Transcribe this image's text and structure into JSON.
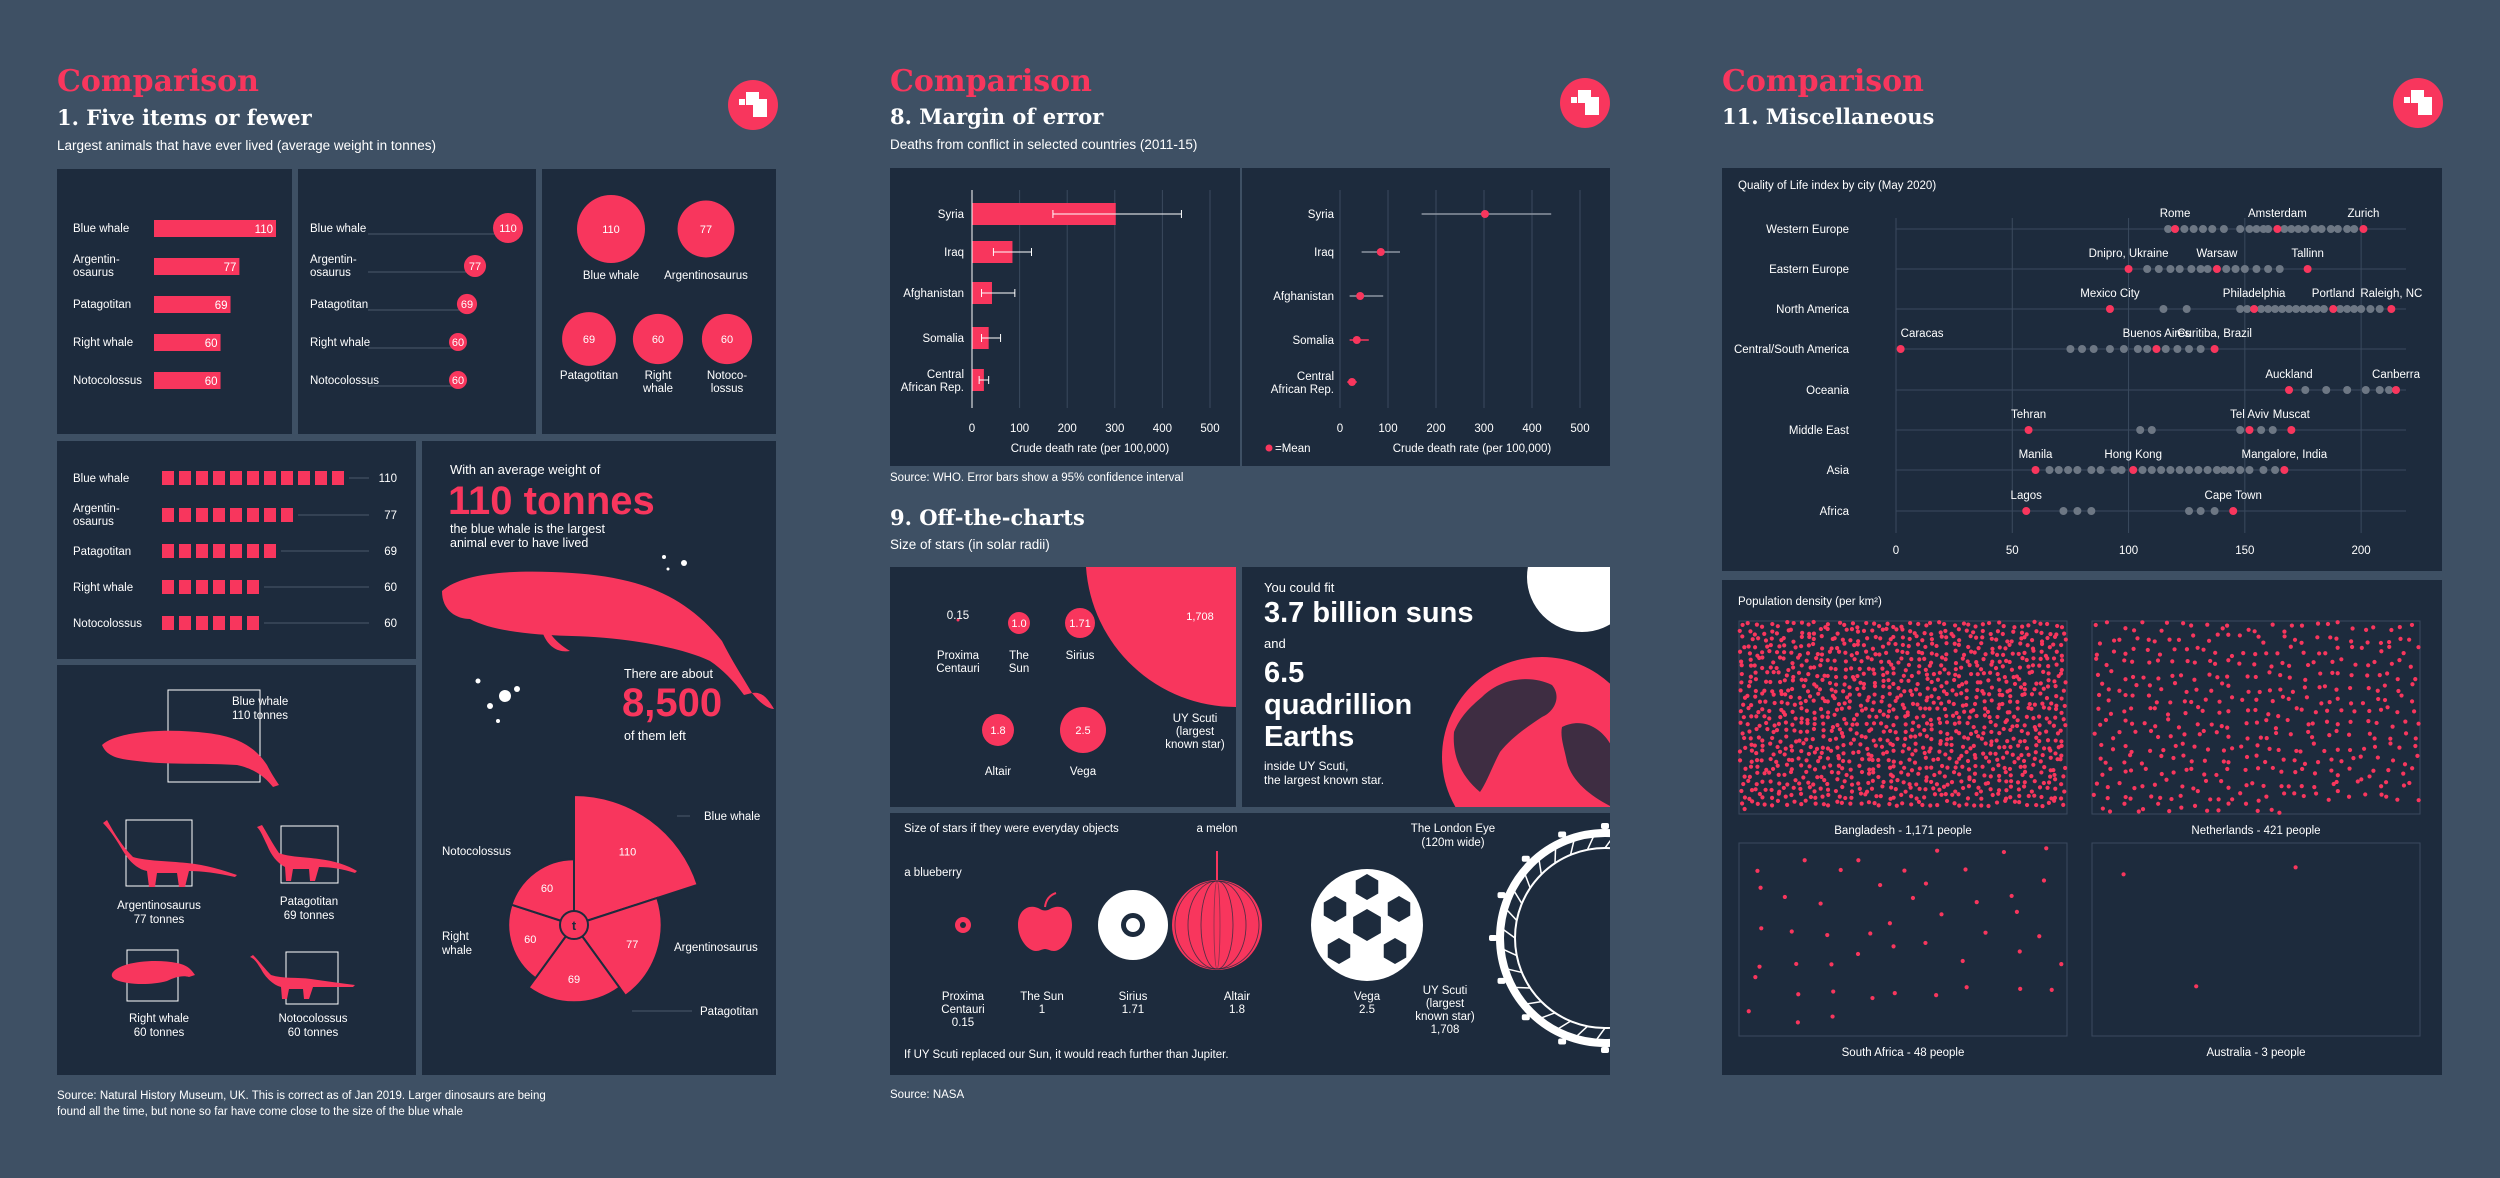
{
  "s1": {
    "heading": "Comparison",
    "title": "1. Five items or fewer",
    "subtitle": "Largest animals that have ever lived (average weight in tonnes)",
    "source": "Source: Natural History Museum, UK. This is correct as of Jan 2019. Larger dinosaurs are being found all the time, but none so far have come close to the size of the blue whale",
    "names": [
      "Blue whale",
      "Argentin-\nosaurus",
      "Patagotitan",
      "Right whale",
      "Notocolossus"
    ],
    "round_labels": [
      "Blue whale",
      "Argentinosaurus",
      "Patagotitan",
      "Right\nwhale",
      "Notoco-\nlossus"
    ],
    "values": [
      110,
      77,
      69,
      60,
      60
    ],
    "callout": {
      "lead": "With an average weight of",
      "big": "110 tonnes",
      "desc": "the blue whale is the largest animal ever to have lived",
      "about": "There are about",
      "count": "8,500",
      "left": "of them left"
    },
    "silhouettes": [
      {
        "name": "Blue whale",
        "weight": "110 tonnes"
      },
      {
        "name": "Argentinosaurus",
        "weight": "77 tonnes"
      },
      {
        "name": "Patagotitan",
        "weight": "69 tonnes"
      },
      {
        "name": "Right whale",
        "weight": "60 tonnes"
      },
      {
        "name": "Notocolossus",
        "weight": "60 tonnes"
      }
    ],
    "radial": {
      "center": "t",
      "labels": [
        "Blue whale",
        "Argentinosaurus",
        "Patagotitan",
        "Right\nwhale",
        "Notocolossus"
      ]
    }
  },
  "s8": {
    "heading": "Comparison",
    "title": "8. Margin of error",
    "subtitle": "Deaths from conflict in selected countries (2011-15)",
    "source": "Source: WHO. Error bars show a 95% confidence interval",
    "mean_legend": "=Mean"
  },
  "s9": {
    "title": "9. Off-the-charts",
    "subtitle": "Size of stars (in solar radii)",
    "stars": [
      {
        "name": "Proxima\nCentauri",
        "value": "0.15"
      },
      {
        "name": "The\nSun",
        "value": "1.0"
      },
      {
        "name": "Sirius",
        "value": "1.71"
      },
      {
        "name": "Altair",
        "value": "1.8"
      },
      {
        "name": "Vega",
        "value": "2.5"
      },
      {
        "name": "UY Scuti\n(largest\nknown star)",
        "value": "1,708"
      }
    ],
    "fit": {
      "lead": "You could fit",
      "suns": "3.7 billion suns",
      "and": "and",
      "earths": "6.5 quadrillion Earths",
      "inside": "inside UY Scuti,\nthe largest known star."
    },
    "everyday": {
      "title": "Size of stars if they were everyday objects",
      "melon": "a melon",
      "blueberry": "a blueberry",
      "eye": "The London Eye\n(120m wide)",
      "items": [
        {
          "name": "Proxima\nCentauri\n0.15"
        },
        {
          "name": "The Sun\n1"
        },
        {
          "name": "Sirius\n1.71"
        },
        {
          "name": "Altair\n1.8"
        },
        {
          "name": "Vega\n2.5"
        },
        {
          "name": "UY Scuti\n(largest\nknown star)\n1,708"
        }
      ],
      "footnote": "If UY Scuti replaced our Sun, it would reach further than Jupiter."
    },
    "source": "Source: NASA"
  },
  "s11": {
    "heading": "Comparison",
    "title": "11. Miscellaneous",
    "qol_title": "Quality of Life index by city (May 2020)",
    "density_title": "Population density (per km²)",
    "density": [
      {
        "label": "Bangladesh - 1,171 people",
        "count": 1171
      },
      {
        "label": "Netherlands - 421 people",
        "count": 421
      },
      {
        "label": "South Africa - 48 people",
        "count": 48
      },
      {
        "label": "Australia - 3 people",
        "count": 3
      }
    ]
  },
  "colors": {
    "accent": "#f8365d",
    "panel": "#1d2b3d",
    "background": "#3e5064",
    "grey_dot": "#6d7784"
  },
  "chart_data": [
    {
      "type": "bar",
      "title": "Largest animals that have ever lived (average weight in tonnes)",
      "categories": [
        "Blue whale",
        "Argentinosaurus",
        "Patagotitan",
        "Right whale",
        "Notocolossus"
      ],
      "values": [
        110,
        77,
        69,
        60,
        60
      ]
    },
    {
      "type": "bar",
      "title": "Deaths from conflict in selected countries (2011-15)",
      "xlabel": "Crude death rate (per 100,000)",
      "categories": [
        "Syria",
        "Iraq",
        "Afghanistan",
        "Somalia",
        "Central\nAfrican Rep."
      ],
      "values": [
        302,
        85,
        42,
        35,
        25
      ],
      "err_low": [
        170,
        45,
        20,
        20,
        15
      ],
      "err_high": [
        440,
        125,
        90,
        60,
        35
      ],
      "xlim": [
        0,
        500
      ],
      "xticks": [
        0,
        100,
        200,
        300,
        400,
        500
      ]
    },
    {
      "type": "scatter",
      "title": "Quality of Life index by city (May 2020)",
      "xlim": [
        0,
        220
      ],
      "xticks": [
        0,
        50,
        100,
        150,
        200
      ],
      "regions": [
        {
          "name": "Western Europe",
          "labels": [
            {
              "text": "Rome",
              "x": 120
            },
            {
              "text": "Amsterdam",
              "x": 164
            },
            {
              "text": "Zurich",
              "x": 201
            }
          ],
          "highlight": [
            120,
            164,
            201
          ],
          "others": [
            117,
            124,
            128,
            132,
            136,
            141,
            148,
            152,
            155,
            158,
            160,
            167,
            170,
            173,
            176,
            180,
            183,
            187,
            190,
            194,
            197
          ]
        },
        {
          "name": "Eastern Europe",
          "labels": [
            {
              "text": "Dnipro, Ukraine",
              "x": 100
            },
            {
              "text": "Warsaw",
              "x": 138
            },
            {
              "text": "Tallinn",
              "x": 177
            }
          ],
          "highlight": [
            100,
            138,
            177
          ],
          "others": [
            108,
            113,
            118,
            122,
            127,
            131,
            134,
            142,
            146,
            150,
            155,
            160,
            165
          ]
        },
        {
          "name": "North America",
          "labels": [
            {
              "text": "Mexico City",
              "x": 92
            },
            {
              "text": "Philadelphia",
              "x": 154
            },
            {
              "text": "Portland",
              "x": 188
            },
            {
              "text": "Raleigh, NC",
              "x": 213
            }
          ],
          "highlight": [
            92,
            154,
            188,
            213
          ],
          "others": [
            115,
            125,
            148,
            151,
            157,
            160,
            163,
            166,
            169,
            172,
            175,
            178,
            181,
            184,
            191,
            194,
            197,
            200,
            204,
            208
          ]
        },
        {
          "name": "Central/South America",
          "labels": [
            {
              "text": "Caracas",
              "x": 2
            },
            {
              "text": "Buenos Aires",
              "x": 112
            },
            {
              "text": "Curitiba, Brazil",
              "x": 137
            }
          ],
          "highlight": [
            2,
            112,
            137
          ],
          "others": [
            75,
            80,
            85,
            92,
            98,
            104,
            108,
            116,
            121,
            126,
            131
          ]
        },
        {
          "name": "Oceania",
          "labels": [
            {
              "text": "Auckland",
              "x": 169
            },
            {
              "text": "Canberra",
              "x": 215
            }
          ],
          "highlight": [
            169,
            215
          ],
          "others": [
            176,
            185,
            194,
            202,
            208,
            212
          ]
        },
        {
          "name": "Middle East",
          "labels": [
            {
              "text": "Tehran",
              "x": 57
            },
            {
              "text": "Tel Aviv",
              "x": 152
            },
            {
              "text": "Muscat",
              "x": 170
            }
          ],
          "highlight": [
            57,
            152,
            170
          ],
          "others": [
            105,
            110,
            148,
            157,
            162
          ]
        },
        {
          "name": "Asia",
          "labels": [
            {
              "text": "Manila",
              "x": 60
            },
            {
              "text": "Hong Kong",
              "x": 102
            },
            {
              "text": "Mangalore, India",
              "x": 167
            }
          ],
          "highlight": [
            60,
            102,
            167
          ],
          "others": [
            66,
            70,
            74,
            78,
            84,
            88,
            94,
            97,
            106,
            110,
            114,
            118,
            122,
            126,
            130,
            134,
            138,
            141,
            144,
            148,
            152,
            158,
            163
          ]
        },
        {
          "name": "Africa",
          "labels": [
            {
              "text": "Lagos",
              "x": 56
            },
            {
              "text": "Cape Town",
              "x": 145
            }
          ],
          "highlight": [
            56,
            145
          ],
          "others": [
            72,
            78,
            84,
            126,
            131,
            137
          ]
        }
      ]
    }
  ]
}
